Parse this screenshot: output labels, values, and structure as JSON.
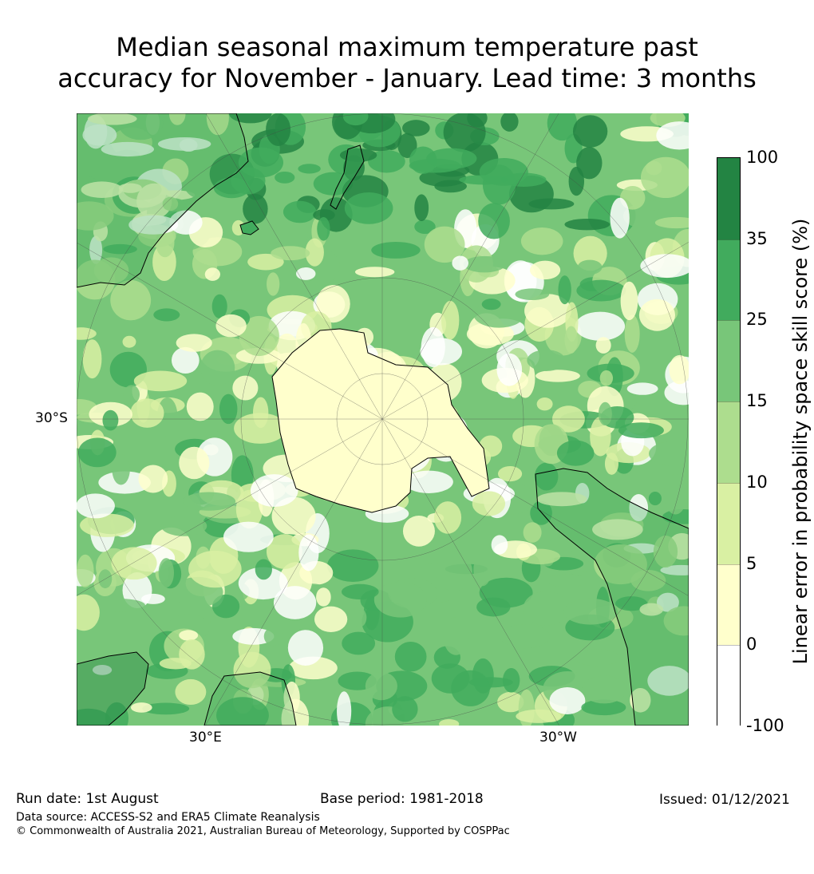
{
  "title": {
    "line1": "Median seasonal maximum temperature past",
    "line2": "accuracy for November - January. Lead time: 3 months"
  },
  "map": {
    "projection": "south-polar-stereographic",
    "lat_label": "30°S",
    "lon_labels": [
      "30°E",
      "30°W"
    ]
  },
  "colorbar": {
    "label": "Linear error in probability space skill score (%)",
    "ticks": [
      "100",
      "35",
      "25",
      "15",
      "10",
      "5",
      "0",
      "-100"
    ],
    "bins": [
      {
        "from": 35,
        "to": 100,
        "color": "#238443"
      },
      {
        "from": 25,
        "to": 35,
        "color": "#41ab5d"
      },
      {
        "from": 15,
        "to": 25,
        "color": "#78c679"
      },
      {
        "from": 10,
        "to": 15,
        "color": "#addd8e"
      },
      {
        "from": 5,
        "to": 10,
        "color": "#d9f0a3"
      },
      {
        "from": 0,
        "to": 5,
        "color": "#ffffcc"
      },
      {
        "from": -100,
        "to": 0,
        "color": "#ffffff"
      }
    ]
  },
  "footer": {
    "run_date": "Run date: 1st August",
    "base_period": "Base period: 1981-2018",
    "issued": "Issued: 01/12/2021",
    "data_source": "Data source: ACCESS-S2 and ERA5 Climate Reanalysis",
    "copyright": "© Commonwealth of Australia 2021, Australian Bureau of Meteorology, Supported by COSPPac"
  }
}
